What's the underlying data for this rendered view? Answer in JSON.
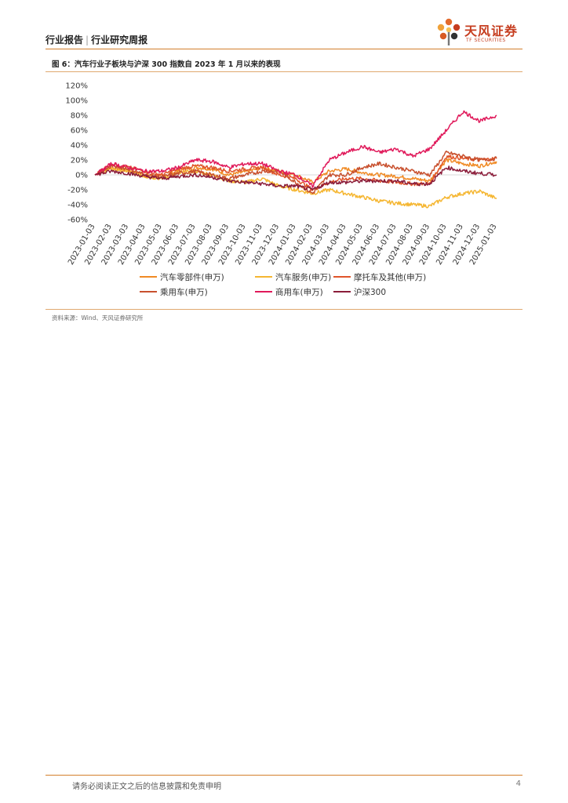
{
  "header": {
    "left": "行业报告",
    "separator": "|",
    "right": "行业研究周报",
    "logo_text": "天风证券",
    "logo_sub": "TF SECURITIES"
  },
  "figure": {
    "title": "图 6：汽车行业子板块与沪深 300 指数自 2023 年 1 月以来的表现",
    "source": "资料来源：Wind、天风证券研究所"
  },
  "footer": {
    "disclaimer": "请务必阅读正文之后的信息披露和免责申明",
    "page": "4"
  },
  "chart_data": {
    "type": "line",
    "x_ticks": [
      "2023-01-03",
      "2023-02-03",
      "2023-03-03",
      "2023-04-03",
      "2023-05-03",
      "2023-06-03",
      "2023-07-03",
      "2023-08-03",
      "2023-09-03",
      "2023-10-03",
      "2023-11-03",
      "2023-12-03",
      "2024-01-03",
      "2024-02-03",
      "2024-03-03",
      "2024-04-03",
      "2024-05-03",
      "2024-06-03",
      "2024-07-03",
      "2024-08-03",
      "2024-09-03",
      "2024-10-03",
      "2024-11-03",
      "2024-12-03",
      "2025-01-03"
    ],
    "y_ticks": [
      "120%",
      "100%",
      "80%",
      "60%",
      "40%",
      "20%",
      "0%",
      "-20%",
      "-40%",
      "-60%"
    ],
    "ylim": [
      -60,
      120
    ],
    "legend_position": "bottom",
    "series": [
      {
        "name": "汽车零部件(申万)",
        "color": "#f08a24",
        "values": [
          0,
          10,
          5,
          0,
          -2,
          5,
          10,
          8,
          0,
          4,
          10,
          5,
          0,
          -10,
          5,
          8,
          3,
          0,
          -2,
          -5,
          -8,
          20,
          15,
          12,
          18
        ]
      },
      {
        "name": "汽车服务(申万)",
        "color": "#f5b631",
        "values": [
          0,
          8,
          5,
          -2,
          -5,
          2,
          5,
          0,
          -8,
          -10,
          -5,
          -15,
          -20,
          -25,
          -20,
          -25,
          -30,
          -35,
          -38,
          -40,
          -42,
          -30,
          -25,
          -22,
          -32
        ]
      },
      {
        "name": "摩托车及其他(申万)",
        "color": "#e0552a",
        "values": [
          0,
          15,
          10,
          5,
          0,
          8,
          12,
          10,
          5,
          8,
          10,
          0,
          -5,
          -20,
          -10,
          -5,
          -5,
          -8,
          -10,
          -12,
          -12,
          25,
          22,
          20,
          22
        ]
      },
      {
        "name": "乘用车(申万)",
        "color": "#c8502e",
        "values": [
          0,
          12,
          8,
          0,
          -3,
          2,
          5,
          0,
          -5,
          0,
          5,
          5,
          -10,
          -25,
          0,
          0,
          10,
          15,
          10,
          5,
          0,
          30,
          25,
          20,
          22
        ]
      },
      {
        "name": "商用车(申万)",
        "color": "#e0195a",
        "values": [
          0,
          15,
          10,
          5,
          5,
          10,
          20,
          18,
          10,
          15,
          15,
          5,
          0,
          -15,
          20,
          30,
          38,
          30,
          35,
          25,
          35,
          60,
          85,
          72,
          80
        ]
      },
      {
        "name": "沪深300",
        "color": "#8b1d3a",
        "values": [
          0,
          5,
          2,
          -2,
          -5,
          -2,
          0,
          -3,
          -8,
          -10,
          -12,
          -15,
          -15,
          -20,
          -10,
          -10,
          -8,
          -8,
          -8,
          -12,
          -12,
          10,
          5,
          2,
          0
        ]
      }
    ]
  }
}
